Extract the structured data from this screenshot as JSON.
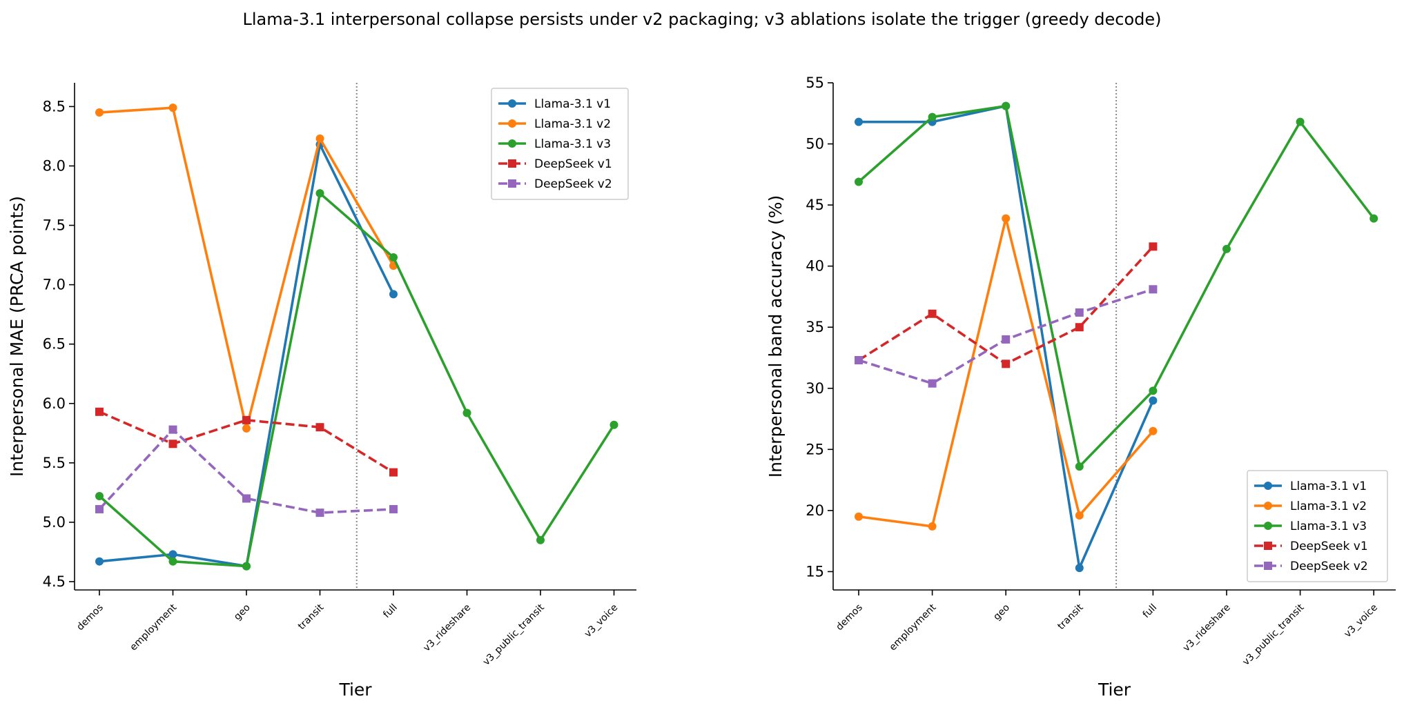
{
  "figure": {
    "title": "Llama-3.1 interpersonal collapse persists under v2 packaging; v3 ablations isolate the trigger (greedy decode)"
  },
  "chart_data": [
    {
      "type": "line",
      "title": "",
      "xlabel": "Tier",
      "ylabel": "Interpersonal MAE (PRCA points)",
      "categories": [
        "demos",
        "employment",
        "geo",
        "transit",
        "full",
        "v3_rideshare",
        "v3_public_transit",
        "v3_voice"
      ],
      "ylim": [
        4.43,
        8.7
      ],
      "yticks": [
        4.5,
        5.0,
        5.5,
        6.0,
        6.5,
        7.0,
        7.5,
        8.0,
        8.5
      ],
      "ytick_labels": [
        "4.5",
        "5.0",
        "5.5",
        "6.0",
        "6.5",
        "7.0",
        "7.5",
        "8.0",
        "8.5"
      ],
      "divider_after_index": 3.5,
      "legend_position": "top-right",
      "grid": false,
      "series": [
        {
          "name": "Llama-3.1 v1",
          "color": "#1f77b4",
          "marker": "circle",
          "dash": "solid",
          "values": [
            4.67,
            4.73,
            4.63,
            8.18,
            6.92,
            null,
            null,
            null
          ]
        },
        {
          "name": "Llama-3.1 v2",
          "color": "#ff7f0e",
          "marker": "circle",
          "dash": "solid",
          "values": [
            8.45,
            8.49,
            5.79,
            8.23,
            7.16,
            null,
            null,
            null
          ]
        },
        {
          "name": "Llama-3.1 v3",
          "color": "#2ca02c",
          "marker": "circle",
          "dash": "solid",
          "values": [
            5.22,
            4.67,
            4.63,
            7.77,
            7.23,
            5.92,
            4.85,
            5.82
          ]
        },
        {
          "name": "DeepSeek v1",
          "color": "#d62728",
          "marker": "square",
          "dash": "dashed",
          "values": [
            5.93,
            5.66,
            5.86,
            5.8,
            5.42,
            null,
            null,
            null
          ]
        },
        {
          "name": "DeepSeek v2",
          "color": "#9467bd",
          "marker": "square",
          "dash": "dashed",
          "values": [
            5.11,
            5.78,
            5.2,
            5.08,
            5.11,
            null,
            null,
            null
          ]
        }
      ]
    },
    {
      "type": "line",
      "title": "",
      "xlabel": "Tier",
      "ylabel": "Interpersonal band accuracy (%)",
      "categories": [
        "demos",
        "employment",
        "geo",
        "transit",
        "full",
        "v3_rideshare",
        "v3_public_transit",
        "v3_voice"
      ],
      "ylim": [
        13.5,
        55
      ],
      "yticks": [
        15,
        20,
        25,
        30,
        35,
        40,
        45,
        50,
        55
      ],
      "ytick_labels": [
        "15",
        "20",
        "25",
        "30",
        "35",
        "40",
        "45",
        "50",
        "55"
      ],
      "divider_after_index": 3.5,
      "legend_position": "bottom-right",
      "grid": false,
      "series": [
        {
          "name": "Llama-3.1 v1",
          "color": "#1f77b4",
          "marker": "circle",
          "dash": "solid",
          "values": [
            51.8,
            51.8,
            53.1,
            15.3,
            29.0,
            null,
            null,
            null
          ]
        },
        {
          "name": "Llama-3.1 v2",
          "color": "#ff7f0e",
          "marker": "circle",
          "dash": "solid",
          "values": [
            19.5,
            18.7,
            43.9,
            19.6,
            26.5,
            null,
            null,
            null
          ]
        },
        {
          "name": "Llama-3.1 v3",
          "color": "#2ca02c",
          "marker": "circle",
          "dash": "solid",
          "values": [
            46.9,
            52.2,
            53.1,
            23.6,
            29.8,
            41.4,
            51.8,
            43.9
          ]
        },
        {
          "name": "DeepSeek v1",
          "color": "#d62728",
          "marker": "square",
          "dash": "dashed",
          "values": [
            32.3,
            36.1,
            32.0,
            35.0,
            41.6,
            null,
            null,
            null
          ]
        },
        {
          "name": "DeepSeek v2",
          "color": "#9467bd",
          "marker": "square",
          "dash": "dashed",
          "values": [
            32.3,
            30.4,
            34.0,
            36.2,
            38.1,
            null,
            null,
            null
          ]
        }
      ]
    }
  ]
}
